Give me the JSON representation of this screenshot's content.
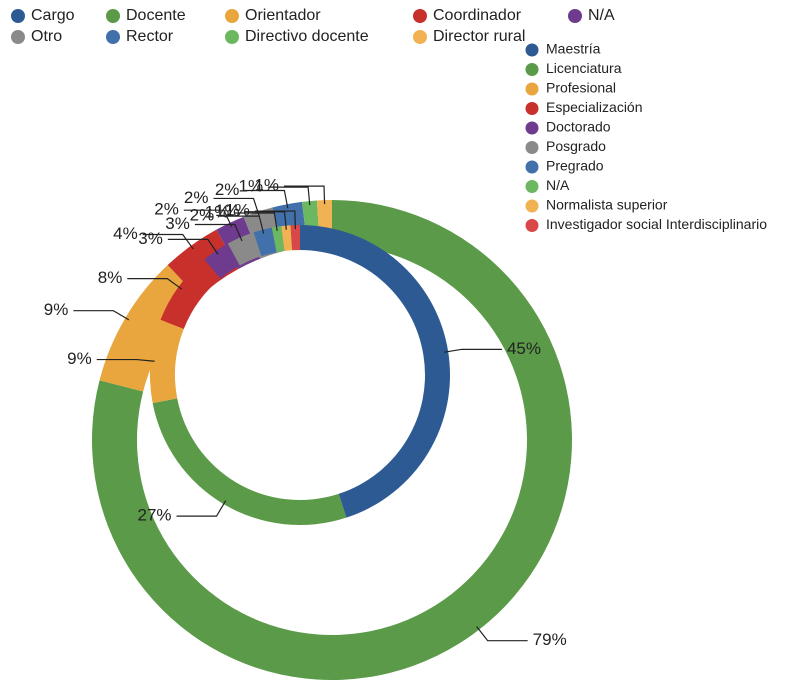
{
  "chart_data": {
    "type": "pie",
    "series": [
      {
        "name": "Cargo",
        "categories": [
          "Docente",
          "Orientador",
          "Coordinador",
          "N/A",
          "Otro",
          "Rector",
          "Directivo docente",
          "Director rural"
        ],
        "colors": [
          "#5b9a48",
          "#e9a53e",
          "#c8302c",
          "#6e3b8e",
          "#8a8a8a",
          "#4170aa",
          "#6cb860",
          "#f0b252"
        ],
        "values": [
          79,
          9,
          4,
          2,
          2,
          2,
          1,
          1
        ],
        "value_labels": [
          "79%",
          "9%",
          "4%",
          "2%",
          "2%",
          "2%",
          "1%",
          "1%"
        ]
      },
      {
        "categories": [
          "Maestría",
          "Licenciatura",
          "Profesional",
          "Especialización",
          "Doctorado",
          "Posgrado",
          "Pregrado",
          "N/A",
          "Normalista superior",
          "Investigador social Interdisciplinario"
        ],
        "colors": [
          "#2e5a94",
          "#5b9a48",
          "#e9a53e",
          "#c8302c",
          "#6e3b8e",
          "#8a8a8a",
          "#4170aa",
          "#6cb860",
          "#f0b252",
          "#d84848"
        ],
        "values": [
          45,
          27,
          9,
          8,
          3,
          3,
          2,
          1,
          1,
          1
        ],
        "value_labels": [
          "45%",
          "27%",
          "9%",
          "8%",
          "3%",
          "3%",
          "2%",
          "1%",
          "1%",
          "1%"
        ]
      }
    ]
  }
}
